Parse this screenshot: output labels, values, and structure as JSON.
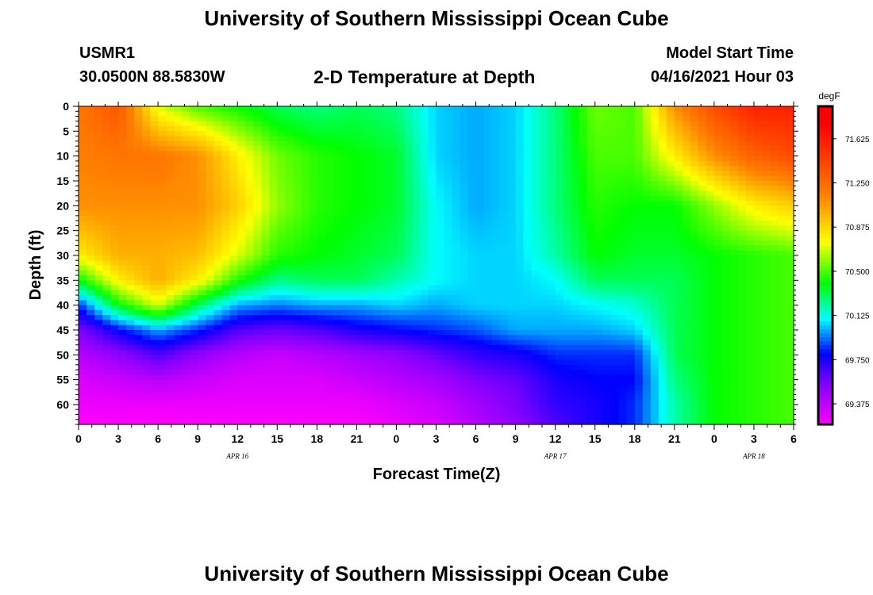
{
  "header": {
    "title_top": "University of Southern Mississippi Ocean Cube",
    "station_id": "USMR1",
    "station_coords": "30.0500N  88.5830W",
    "chart_title": "2-D Temperature at Depth",
    "model_label": "Model Start Time",
    "model_time": "04/16/2021 Hour 03"
  },
  "footer": {
    "title_bottom": "University of Southern Mississippi Ocean Cube"
  },
  "chart_data": {
    "type": "heatmap",
    "title": "2-D Temperature at Depth",
    "xlabel": "Forecast Time(Z)",
    "ylabel": "Depth (ft)",
    "colorbar_unit": "degF",
    "x_range_hours": [
      0,
      54
    ],
    "y_range_ft": [
      0,
      64
    ],
    "x_tick_labels": [
      "0",
      "3",
      "6",
      "9",
      "12",
      "15",
      "18",
      "21",
      "0",
      "3",
      "6",
      "9",
      "12",
      "15",
      "18",
      "21",
      "0",
      "3",
      "6"
    ],
    "y_tick_values": [
      0,
      5,
      10,
      15,
      20,
      25,
      30,
      35,
      40,
      45,
      50,
      55,
      60
    ],
    "date_labels": [
      {
        "text": "APR 16",
        "hour": 12
      },
      {
        "text": "APR 17",
        "hour": 36
      },
      {
        "text": "APR 18",
        "hour": 51
      }
    ],
    "colorbar_range": [
      69.2,
      71.9
    ],
    "colorbar_ticks": [
      "71.625",
      "71.250",
      "70.875",
      "70.500",
      "70.125",
      "69.750",
      "69.375"
    ],
    "colors": {
      "magenta": "#ff00ff",
      "purple": "#8000ff",
      "blue": "#0000ff",
      "cyan": "#00ffff",
      "green": "#00ff00",
      "yellow": "#ffff00",
      "orange": "#ff8000",
      "red": "#ff0000"
    },
    "temperature_grid": {
      "times_hours": [
        0,
        3,
        6,
        9,
        12,
        15,
        18,
        21,
        24,
        27,
        30,
        33,
        36,
        39,
        42,
        45,
        48,
        51,
        54
      ],
      "depths_ft": [
        0,
        10,
        20,
        30,
        35,
        40,
        45,
        50,
        55,
        60,
        64
      ],
      "values_degF": [
        [
          71.2,
          71.35,
          70.7,
          70.5,
          70.4,
          70.3,
          70.25,
          70.3,
          70.25,
          70.05,
          70.0,
          70.05,
          70.25,
          70.55,
          70.5,
          71.1,
          71.4,
          71.6,
          71.6
        ],
        [
          71.15,
          71.2,
          71.2,
          71.1,
          70.8,
          70.55,
          70.45,
          70.4,
          70.35,
          70.05,
          70.0,
          70.05,
          70.25,
          70.5,
          70.5,
          70.8,
          71.1,
          71.3,
          71.4
        ],
        [
          71.1,
          71.1,
          71.1,
          71.1,
          70.9,
          70.6,
          70.45,
          70.4,
          70.35,
          70.1,
          70.0,
          70.05,
          70.25,
          70.45,
          70.4,
          70.4,
          70.6,
          70.8,
          70.9
        ],
        [
          70.8,
          71.0,
          71.0,
          70.95,
          70.7,
          70.45,
          70.4,
          70.35,
          70.3,
          70.1,
          70.05,
          70.05,
          70.2,
          70.4,
          70.35,
          70.35,
          70.4,
          70.45,
          70.5
        ],
        [
          70.4,
          70.8,
          71.0,
          70.8,
          70.45,
          70.25,
          70.3,
          70.3,
          70.2,
          70.1,
          70.05,
          70.05,
          70.1,
          70.3,
          70.3,
          70.3,
          70.4,
          70.45,
          70.5
        ],
        [
          69.85,
          70.4,
          70.7,
          70.3,
          70.0,
          69.95,
          70.0,
          70.0,
          70.05,
          70.0,
          70.05,
          70.05,
          70.05,
          70.1,
          70.15,
          70.3,
          70.4,
          70.45,
          70.5
        ],
        [
          69.55,
          69.8,
          70.0,
          69.85,
          69.65,
          69.6,
          69.65,
          69.75,
          69.8,
          69.85,
          69.9,
          70.0,
          70.0,
          70.0,
          70.05,
          70.3,
          70.4,
          70.45,
          70.5
        ],
        [
          69.4,
          69.5,
          69.65,
          69.5,
          69.4,
          69.35,
          69.4,
          69.45,
          69.5,
          69.6,
          69.7,
          69.75,
          69.85,
          69.85,
          69.85,
          70.3,
          70.4,
          70.45,
          70.5
        ],
        [
          69.3,
          69.35,
          69.4,
          69.35,
          69.3,
          69.3,
          69.3,
          69.35,
          69.4,
          69.45,
          69.55,
          69.6,
          69.75,
          69.8,
          69.8,
          70.25,
          70.4,
          70.45,
          70.5
        ],
        [
          69.25,
          69.25,
          69.25,
          69.25,
          69.25,
          69.25,
          69.25,
          69.25,
          69.3,
          69.35,
          69.45,
          69.55,
          69.7,
          69.75,
          69.85,
          70.2,
          70.4,
          70.45,
          70.5
        ],
        [
          69.2,
          69.2,
          69.2,
          69.2,
          69.2,
          69.2,
          69.2,
          69.2,
          69.25,
          69.3,
          69.4,
          69.5,
          69.65,
          69.75,
          69.85,
          70.2,
          70.4,
          70.45,
          70.5
        ]
      ]
    }
  }
}
